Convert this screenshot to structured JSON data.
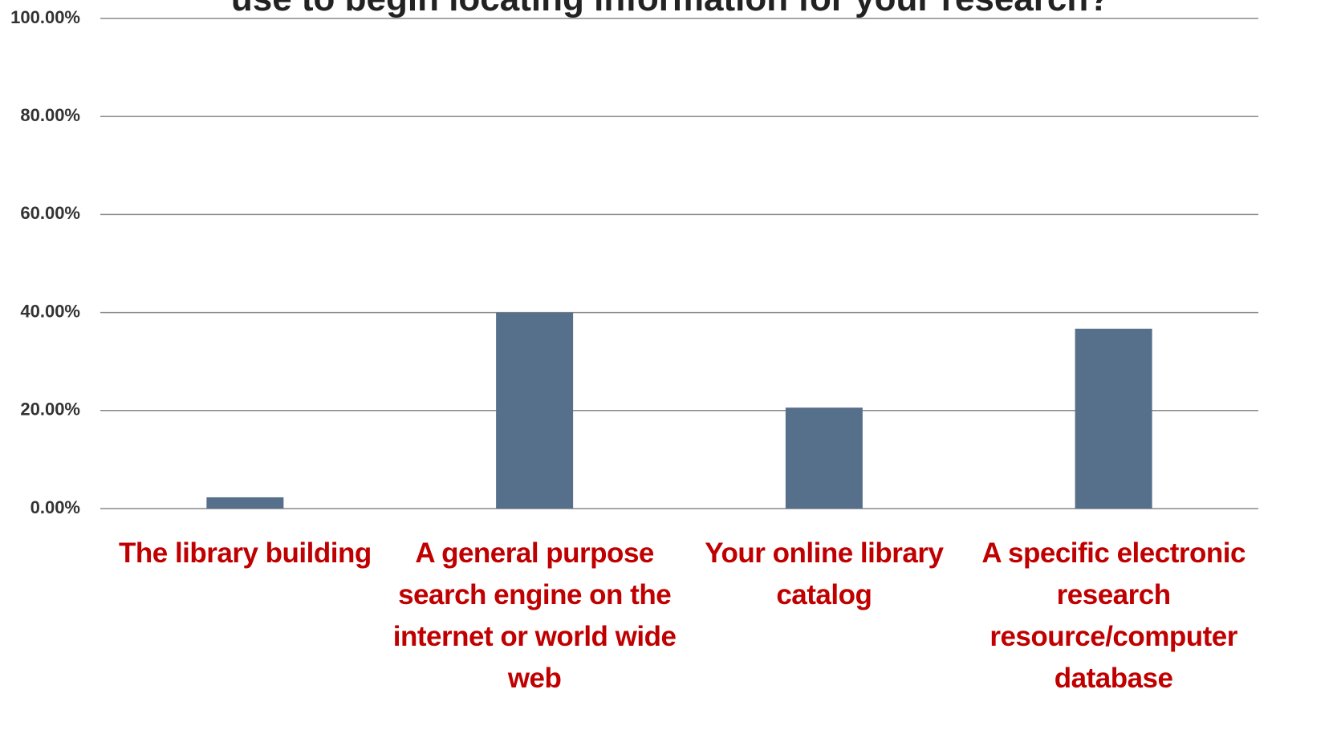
{
  "chart_data": {
    "type": "bar",
    "title": "use to begin locating information for your research?",
    "categories": [
      "The library building",
      "A general purpose search engine on the internet or world wide web",
      "Your online library catalog",
      "A specific electronic research resource/computer database"
    ],
    "values": [
      2.3,
      40,
      20.6,
      36.7
    ],
    "color": "#566f8a",
    "ylim": [
      0,
      100
    ],
    "yticks": [
      {
        "value": 0,
        "label": "0.00%"
      },
      {
        "value": 20,
        "label": "20.00%"
      },
      {
        "value": 40,
        "label": "40.00%"
      },
      {
        "value": 60,
        "label": "60.00%"
      },
      {
        "value": 80,
        "label": "80.00%"
      },
      {
        "value": 100,
        "label": "100.00%"
      }
    ],
    "grid": true
  }
}
